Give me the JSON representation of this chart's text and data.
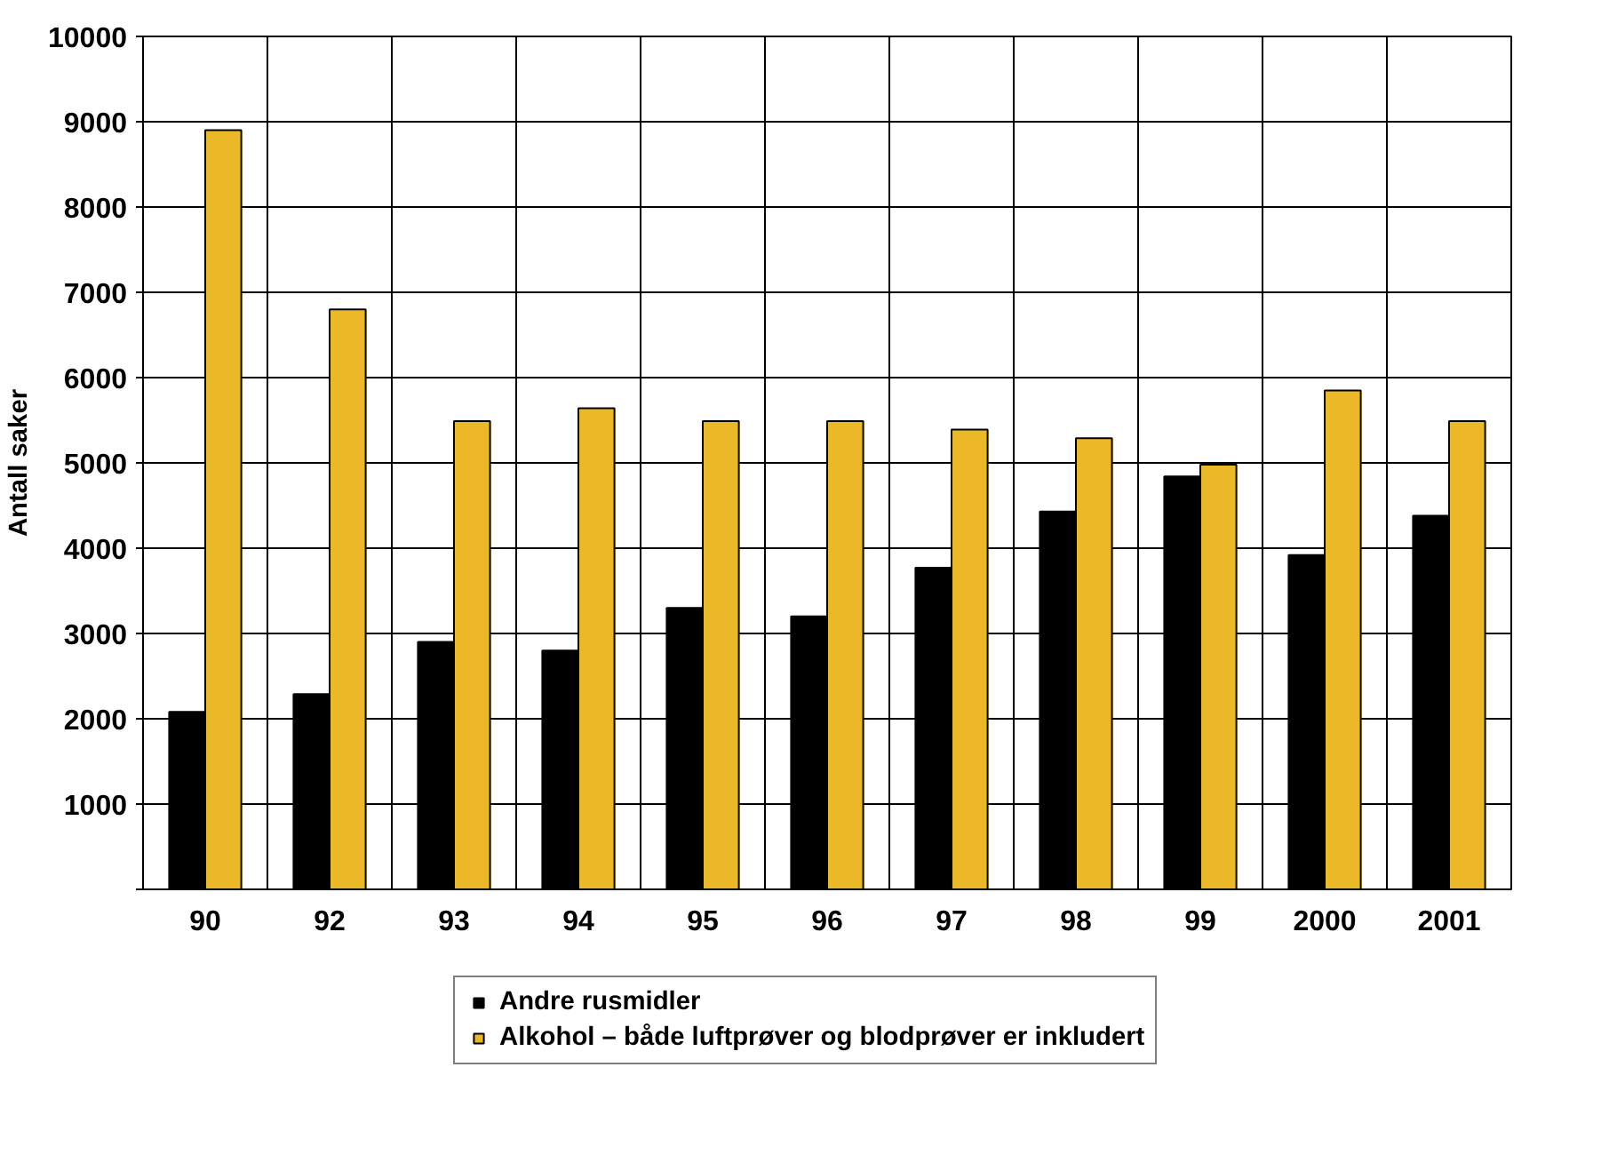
{
  "chart_data": {
    "type": "bar",
    "categories": [
      "90",
      "92",
      "93",
      "94",
      "95",
      "96",
      "97",
      "98",
      "99",
      "2000",
      "2001"
    ],
    "ylabel": "Antall saker",
    "series": [
      {
        "name": "Andre rusmidler",
        "color": "#000000",
        "values": [
          2080,
          2290,
          2900,
          2800,
          3300,
          3200,
          3770,
          4430,
          4840,
          3920,
          4380
        ]
      },
      {
        "name": "Alkohol – både luftprøver og blodprøver er inkludert",
        "color": "#ebb928",
        "values": [
          8900,
          6800,
          5490,
          5640,
          5490,
          5490,
          5390,
          5290,
          4980,
          5850,
          5490
        ]
      }
    ],
    "ylim": [
      0,
      10000
    ],
    "yticks": [
      {
        "value": 0,
        "label": null
      },
      1000,
      2000,
      3000,
      4000,
      5000,
      6000,
      7000,
      8000,
      9000,
      10000
    ],
    "grid": true,
    "legend": "bottom"
  }
}
